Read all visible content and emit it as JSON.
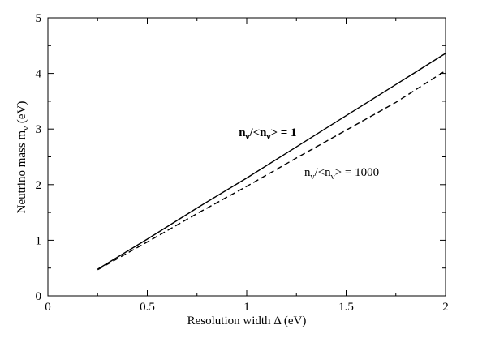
{
  "chart_data": {
    "type": "line",
    "title": "",
    "xlabel": "Resolution width Δ (eV)",
    "ylabel_main": "Neutrino mass m",
    "ylabel_sub": "ν",
    "ylabel_unit": " (eV)",
    "xlim": [
      0,
      2
    ],
    "ylim": [
      0,
      5
    ],
    "xticks": [
      {
        "value": 0,
        "label": "0"
      },
      {
        "value": 0.5,
        "label": "0.5"
      },
      {
        "value": 1,
        "label": "1"
      },
      {
        "value": 1.5,
        "label": "1.5"
      },
      {
        "value": 2,
        "label": "2"
      }
    ],
    "yticks": [
      {
        "value": 0,
        "label": "0"
      },
      {
        "value": 1,
        "label": "1"
      },
      {
        "value": 2,
        "label": "2"
      },
      {
        "value": 3,
        "label": "3"
      },
      {
        "value": 4,
        "label": "4"
      },
      {
        "value": 5,
        "label": "5"
      }
    ],
    "grid": false,
    "series": [
      {
        "style": "solid",
        "x": [
          0.25,
          0.5,
          0.75,
          1.0,
          1.25,
          1.5,
          1.75,
          2.0
        ],
        "y": [
          0.48,
          1.02,
          1.58,
          2.12,
          2.68,
          3.24,
          3.8,
          4.36
        ]
      },
      {
        "style": "dashed",
        "x": [
          0.25,
          0.5,
          0.75,
          1.0,
          1.25,
          1.5,
          1.75,
          2.0
        ],
        "y": [
          0.47,
          0.97,
          1.48,
          1.97,
          2.48,
          2.98,
          3.48,
          4.05
        ]
      }
    ],
    "annotations": [
      {
        "id": "ratio-1",
        "bold": true,
        "x": 0.96,
        "y": 2.87,
        "parts": [
          "n",
          "ν",
          "/<n",
          "ν",
          "> = 1"
        ]
      },
      {
        "id": "ratio-1000",
        "bold": false,
        "x": 1.29,
        "y": 2.16,
        "parts": [
          "n",
          "ν",
          "/<n",
          "ν",
          "> = 1000"
        ]
      }
    ]
  }
}
